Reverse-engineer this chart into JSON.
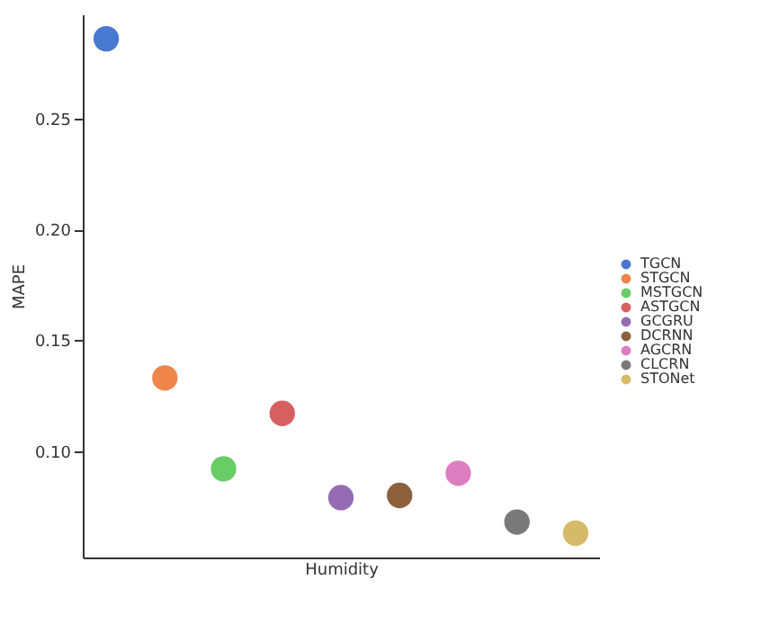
{
  "chart_data": {
    "type": "scatter",
    "xlabel": "Humidity",
    "ylabel": "MAPE",
    "categories": [
      null,
      null,
      null,
      null,
      null,
      null,
      null,
      null,
      null
    ],
    "series": [
      {
        "name": "TGCN",
        "color": "#4878d0",
        "values": [
          0.286,
          null,
          null,
          null,
          null,
          null,
          null,
          null,
          null
        ]
      },
      {
        "name": "STGCN",
        "color": "#ee854a",
        "values": [
          null,
          0.133,
          null,
          null,
          null,
          null,
          null,
          null,
          null
        ]
      },
      {
        "name": "MSTGCN",
        "color": "#6acc64",
        "values": [
          null,
          null,
          0.092,
          null,
          null,
          null,
          null,
          null,
          null
        ]
      },
      {
        "name": "ASTGCN",
        "color": "#d65f5f",
        "values": [
          null,
          null,
          null,
          0.117,
          null,
          null,
          null,
          null,
          null
        ]
      },
      {
        "name": "GCGRU",
        "color": "#956cb4",
        "values": [
          null,
          null,
          null,
          null,
          0.079,
          null,
          null,
          null,
          null
        ]
      },
      {
        "name": "DCRNN",
        "color": "#8c613c",
        "values": [
          null,
          null,
          null,
          null,
          null,
          0.08,
          null,
          null,
          null
        ]
      },
      {
        "name": "AGCRN",
        "color": "#dc7ec0",
        "values": [
          null,
          null,
          null,
          null,
          null,
          null,
          0.09,
          null,
          null
        ]
      },
      {
        "name": "CLCRN",
        "color": "#797979",
        "values": [
          null,
          null,
          null,
          null,
          null,
          null,
          null,
          0.068,
          null
        ]
      },
      {
        "name": "STONet",
        "color": "#d5bb67",
        "values": [
          null,
          null,
          null,
          null,
          null,
          null,
          null,
          null,
          0.063
        ]
      }
    ],
    "ylim": [
      0.052,
      0.297
    ],
    "yticks": [
      {
        "value": 0.1,
        "label": "0.10"
      },
      0.15,
      {
        "value": 0.2,
        "label": "0.20"
      },
      0.25
    ],
    "grid": false,
    "legend": "right",
    "marker": "circle",
    "tick_labels": "y"
  }
}
